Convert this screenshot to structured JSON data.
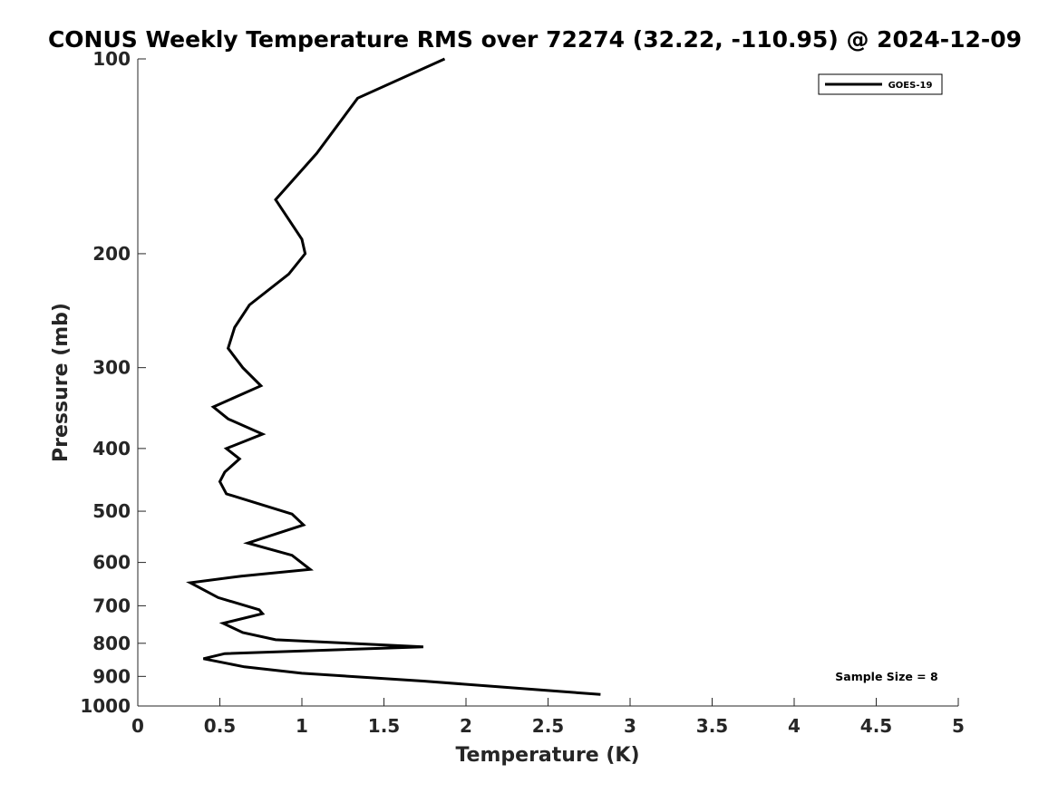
{
  "chart_data": {
    "type": "line",
    "title": "CONUS Weekly Temperature RMS over 72274 (32.22, -110.95) @ 2024-12-09",
    "xlabel": "Temperature (K)",
    "ylabel": "Pressure (mb)",
    "xlim": [
      0,
      5
    ],
    "ylim": [
      100,
      1000
    ],
    "y_scale": "log",
    "y_reversed": true,
    "x_ticks": [
      0,
      0.5,
      1,
      1.5,
      2,
      2.5,
      3,
      3.5,
      4,
      4.5,
      5
    ],
    "x_tick_labels": [
      "0",
      "0.5",
      "1",
      "1.5",
      "2",
      "2.5",
      "3",
      "3.5",
      "4",
      "4.5",
      "5"
    ],
    "y_ticks": [
      100,
      200,
      300,
      400,
      500,
      600,
      700,
      800,
      900,
      1000
    ],
    "y_tick_labels": [
      "100",
      "200",
      "300",
      "400",
      "500",
      "600",
      "700",
      "800",
      "900",
      "1000"
    ],
    "grid": false,
    "legend_position": "top-right",
    "series": [
      {
        "name": "GOES-19",
        "color": "#000000",
        "x": [
          1.87,
          1.34,
          1.09,
          0.84,
          1.0,
          1.02,
          0.92,
          0.68,
          0.59,
          0.55,
          0.64,
          0.75,
          0.46,
          0.55,
          0.76,
          0.54,
          0.62,
          0.53,
          0.5,
          0.54,
          0.94,
          1.01,
          0.67,
          0.94,
          1.05,
          0.63,
          0.32,
          0.49,
          0.74,
          0.76,
          0.52,
          0.64,
          0.84,
          1.74,
          0.53,
          0.4,
          0.65,
          1.0,
          1.74,
          2.82
        ],
        "y": [
          100,
          115,
          140,
          165,
          190,
          200,
          215,
          240,
          260,
          280,
          300,
          320,
          345,
          360,
          380,
          400,
          415,
          435,
          450,
          470,
          505,
          525,
          560,
          585,
          615,
          630,
          645,
          680,
          710,
          720,
          745,
          770,
          790,
          810,
          830,
          845,
          870,
          890,
          915,
          960
        ]
      }
    ],
    "annotations": [
      "Sample Size = 8"
    ]
  }
}
